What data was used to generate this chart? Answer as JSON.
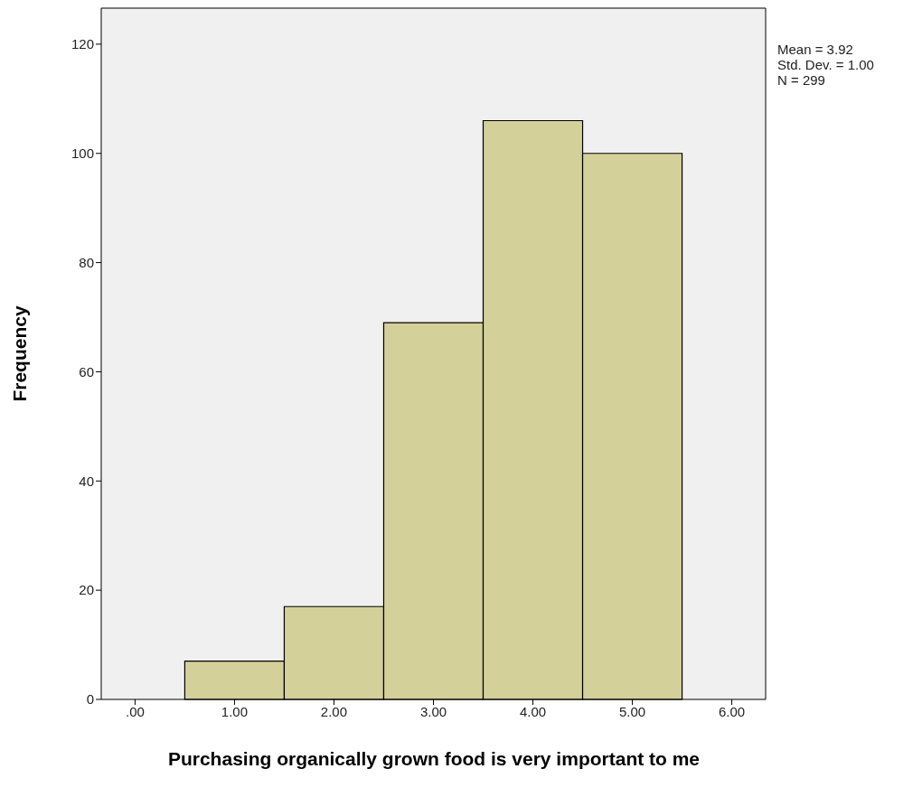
{
  "chart_data": {
    "type": "histogram",
    "xlabel": "Purchasing organically grown food is very important to me",
    "ylabel": "Frequency",
    "bins": [
      0.5,
      1.5,
      2.5,
      3.5,
      4.5,
      5.5
    ],
    "values": [
      7,
      17,
      69,
      106,
      100
    ],
    "color": "#d4d09a",
    "xlim": [
      -0.34,
      6.34
    ],
    "xticks": [
      {
        "value": 0,
        "label": ".00"
      },
      {
        "value": 1,
        "label": "1.00"
      },
      {
        "value": 2,
        "label": "2.00"
      },
      {
        "value": 3,
        "label": "3.00"
      },
      {
        "value": 4,
        "label": "4.00"
      },
      {
        "value": 5,
        "label": "5.00"
      },
      {
        "value": 6,
        "label": "6.00"
      }
    ],
    "ylim": [
      0,
      126.6
    ],
    "yticks": [
      0,
      20,
      40,
      60,
      80,
      100,
      120
    ],
    "grid": false,
    "annotations": [
      "Mean = 3.92",
      "Std. Dev. = 1.00",
      "N = 299"
    ]
  }
}
